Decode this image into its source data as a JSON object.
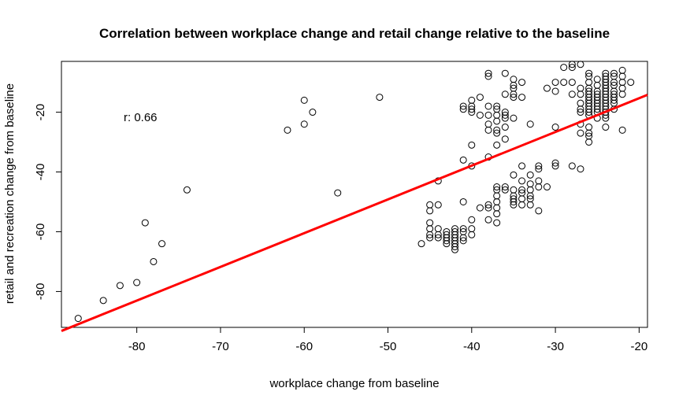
{
  "chart_data": {
    "type": "scatter",
    "title": "Correlation between workplace change and retail change relative to the baseline",
    "xlabel": "workplace change from baseline",
    "ylabel": "retail and recreation change from baseline",
    "xlim": [
      -89,
      -19
    ],
    "ylim": [
      -92,
      -3
    ],
    "xticks": [
      -80,
      -70,
      -60,
      -50,
      -40,
      -30,
      -20
    ],
    "yticks": [
      -80,
      -60,
      -40,
      -20
    ],
    "annotation": "r: 0.66",
    "grid": false,
    "marker": "open-circle",
    "point_color": "#000000",
    "fit_line": {
      "color": "#ff0000",
      "x": [
        -89,
        -19
      ],
      "y": [
        -93.2,
        -14.2
      ]
    },
    "points": [
      [
        -87,
        -89
      ],
      [
        -84,
        -83
      ],
      [
        -82,
        -78
      ],
      [
        -80,
        -77
      ],
      [
        -79,
        -57
      ],
      [
        -78,
        -70
      ],
      [
        -77,
        -64
      ],
      [
        -74,
        -46
      ],
      [
        -62,
        -26
      ],
      [
        -60,
        -16
      ],
      [
        -60,
        -24
      ],
      [
        -59,
        -20
      ],
      [
        -56,
        -47
      ],
      [
        -51,
        -15
      ],
      [
        -46,
        -64
      ],
      [
        -45,
        -51
      ],
      [
        -45,
        -53
      ],
      [
        -45,
        -57
      ],
      [
        -45,
        -59
      ],
      [
        -45,
        -61
      ],
      [
        -45,
        -62
      ],
      [
        -44,
        -43
      ],
      [
        -44,
        -51
      ],
      [
        -44,
        -59
      ],
      [
        -44,
        -61
      ],
      [
        -44,
        -62
      ],
      [
        -43,
        -60
      ],
      [
        -43,
        -61
      ],
      [
        -43,
        -62
      ],
      [
        -43,
        -63
      ],
      [
        -43,
        -64
      ],
      [
        -42,
        -59
      ],
      [
        -42,
        -60
      ],
      [
        -42,
        -61
      ],
      [
        -42,
        -62
      ],
      [
        -42,
        -63
      ],
      [
        -42,
        -64
      ],
      [
        -42,
        -65
      ],
      [
        -42,
        -66
      ],
      [
        -41,
        -36
      ],
      [
        -41,
        -50
      ],
      [
        -41,
        -59
      ],
      [
        -41,
        -60
      ],
      [
        -41,
        -62
      ],
      [
        -41,
        -63
      ],
      [
        -41,
        -18
      ],
      [
        -41,
        -19
      ],
      [
        -40,
        -16
      ],
      [
        -40,
        -18
      ],
      [
        -40,
        -19
      ],
      [
        -40,
        -20
      ],
      [
        -40,
        -31
      ],
      [
        -40,
        -38
      ],
      [
        -40,
        -56
      ],
      [
        -40,
        -59
      ],
      [
        -40,
        -61
      ],
      [
        -39,
        -15
      ],
      [
        -39,
        -21
      ],
      [
        -39,
        -52
      ],
      [
        -38,
        -7
      ],
      [
        -38,
        -8
      ],
      [
        -38,
        -18
      ],
      [
        -38,
        -21
      ],
      [
        -38,
        -24
      ],
      [
        -38,
        -26
      ],
      [
        -38,
        -35
      ],
      [
        -38,
        -51
      ],
      [
        -38,
        -52
      ],
      [
        -38,
        -56
      ],
      [
        -37,
        -18
      ],
      [
        -37,
        -19
      ],
      [
        -37,
        -21
      ],
      [
        -37,
        -23
      ],
      [
        -37,
        -26
      ],
      [
        -37,
        -27
      ],
      [
        -37,
        -31
      ],
      [
        -37,
        -45
      ],
      [
        -37,
        -46
      ],
      [
        -37,
        -48
      ],
      [
        -37,
        -50
      ],
      [
        -37,
        -52
      ],
      [
        -37,
        -54
      ],
      [
        -37,
        -57
      ],
      [
        -36,
        -7
      ],
      [
        -36,
        -14
      ],
      [
        -36,
        -20
      ],
      [
        -36,
        -21
      ],
      [
        -36,
        -22
      ],
      [
        -36,
        -25
      ],
      [
        -36,
        -29
      ],
      [
        -36,
        -45
      ],
      [
        -36,
        -46
      ],
      [
        -35,
        -9
      ],
      [
        -35,
        -11
      ],
      [
        -35,
        -12
      ],
      [
        -35,
        -14
      ],
      [
        -35,
        -15
      ],
      [
        -35,
        -22
      ],
      [
        -35,
        -41
      ],
      [
        -35,
        -46
      ],
      [
        -35,
        -48
      ],
      [
        -35,
        -49
      ],
      [
        -35,
        -50
      ],
      [
        -35,
        -51
      ],
      [
        -34,
        -10
      ],
      [
        -34,
        -15
      ],
      [
        -34,
        -38
      ],
      [
        -34,
        -43
      ],
      [
        -34,
        -46
      ],
      [
        -34,
        -47
      ],
      [
        -34,
        -49
      ],
      [
        -34,
        -51
      ],
      [
        -33,
        -24
      ],
      [
        -33,
        -41
      ],
      [
        -33,
        -44
      ],
      [
        -33,
        -46
      ],
      [
        -33,
        -48
      ],
      [
        -33,
        -49
      ],
      [
        -33,
        -51
      ],
      [
        -32,
        -38
      ],
      [
        -32,
        -39
      ],
      [
        -32,
        -43
      ],
      [
        -32,
        -45
      ],
      [
        -32,
        -53
      ],
      [
        -31,
        -12
      ],
      [
        -31,
        -45
      ],
      [
        -30,
        -10
      ],
      [
        -30,
        -13
      ],
      [
        -30,
        -25
      ],
      [
        -30,
        -37
      ],
      [
        -30,
        -38
      ],
      [
        -29,
        -5
      ],
      [
        -29,
        -10
      ],
      [
        -28,
        -4
      ],
      [
        -28,
        -5
      ],
      [
        -28,
        -10
      ],
      [
        -28,
        -14
      ],
      [
        -28,
        -38
      ],
      [
        -27,
        -4
      ],
      [
        -27,
        -12
      ],
      [
        -27,
        -14
      ],
      [
        -27,
        -17
      ],
      [
        -27,
        -19
      ],
      [
        -27,
        -20
      ],
      [
        -27,
        -24
      ],
      [
        -27,
        -27
      ],
      [
        -27,
        -39
      ],
      [
        -26,
        -7
      ],
      [
        -26,
        -8
      ],
      [
        -26,
        -10
      ],
      [
        -26,
        -12
      ],
      [
        -26,
        -13
      ],
      [
        -26,
        -14
      ],
      [
        -26,
        -15
      ],
      [
        -26,
        -16
      ],
      [
        -26,
        -17
      ],
      [
        -26,
        -18
      ],
      [
        -26,
        -19
      ],
      [
        -26,
        -20
      ],
      [
        -26,
        -21
      ],
      [
        -26,
        -25
      ],
      [
        -26,
        -27
      ],
      [
        -26,
        -28
      ],
      [
        -26,
        -30
      ],
      [
        -25,
        -9
      ],
      [
        -25,
        -11
      ],
      [
        -25,
        -13
      ],
      [
        -25,
        -14
      ],
      [
        -25,
        -15
      ],
      [
        -25,
        -16
      ],
      [
        -25,
        -17
      ],
      [
        -25,
        -18
      ],
      [
        -25,
        -19
      ],
      [
        -25,
        -20
      ],
      [
        -25,
        -22
      ],
      [
        -24,
        -7
      ],
      [
        -24,
        -8
      ],
      [
        -24,
        -9
      ],
      [
        -24,
        -10
      ],
      [
        -24,
        -11
      ],
      [
        -24,
        -12
      ],
      [
        -24,
        -13
      ],
      [
        -24,
        -14
      ],
      [
        -24,
        -15
      ],
      [
        -24,
        -16
      ],
      [
        -24,
        -17
      ],
      [
        -24,
        -18
      ],
      [
        -24,
        -19
      ],
      [
        -24,
        -20
      ],
      [
        -24,
        -21
      ],
      [
        -24,
        -22
      ],
      [
        -24,
        -25
      ],
      [
        -23,
        -7
      ],
      [
        -23,
        -8
      ],
      [
        -23,
        -10
      ],
      [
        -23,
        -11
      ],
      [
        -23,
        -13
      ],
      [
        -23,
        -14
      ],
      [
        -23,
        -15
      ],
      [
        -23,
        -16
      ],
      [
        -23,
        -17
      ],
      [
        -23,
        -19
      ],
      [
        -22,
        -6
      ],
      [
        -22,
        -8
      ],
      [
        -22,
        -10
      ],
      [
        -22,
        -12
      ],
      [
        -22,
        -14
      ],
      [
        -22,
        -26
      ],
      [
        -21,
        -10
      ]
    ]
  }
}
